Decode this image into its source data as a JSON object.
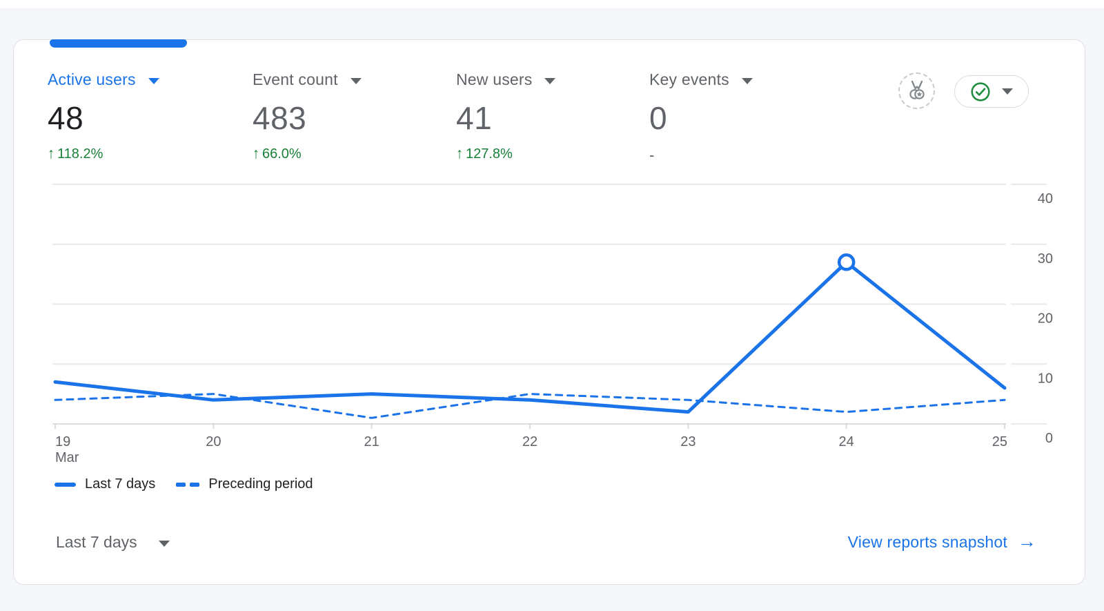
{
  "colors": {
    "accent_blue": "#1a73e8",
    "positive_green": "#188038",
    "text_dark": "#202124",
    "text_gray": "#5f6368",
    "grid_line": "#e8eaed",
    "axis_line": "#dadce0",
    "card_border": "#dfe1e5",
    "page_bg": "#f4f6f9"
  },
  "metrics": [
    {
      "label": "Active users",
      "value": "48",
      "delta_arrow": "↑",
      "delta": "118.2%",
      "active": true
    },
    {
      "label": "Event count",
      "value": "483",
      "delta_arrow": "↑",
      "delta": "66.0%",
      "active": false
    },
    {
      "label": "New users",
      "value": "41",
      "delta_arrow": "↑",
      "delta": "127.8%",
      "active": false
    },
    {
      "label": "Key events",
      "value": "0",
      "delta": "-",
      "active": false
    }
  ],
  "header_icons": [
    {
      "name": "benchmark-medal-icon"
    },
    {
      "name": "status-check-dropdown"
    }
  ],
  "chart_data": {
    "type": "line",
    "x_labels": [
      "19",
      "20",
      "21",
      "22",
      "23",
      "24",
      "25"
    ],
    "x_sublabel": {
      "index": 0,
      "text": "Mar"
    },
    "y_ticks": [
      0,
      10,
      20,
      30,
      40
    ],
    "ylim": [
      0,
      40
    ],
    "grid": true,
    "legend_position": "bottom-left",
    "series": [
      {
        "name": "Last 7 days",
        "style": "solid",
        "values": [
          7,
          4,
          5,
          4,
          2,
          27,
          6
        ],
        "marker_index": 5
      },
      {
        "name": "Preceding period",
        "style": "dashed",
        "values": [
          4,
          5,
          1,
          5,
          4,
          2,
          4
        ]
      }
    ]
  },
  "legend": [
    {
      "label": "Last 7 days",
      "style": "solid"
    },
    {
      "label": "Preceding period",
      "style": "dashed"
    }
  ],
  "footer": {
    "range_label": "Last 7 days",
    "link_label": "View reports snapshot",
    "link_arrow": "→"
  }
}
